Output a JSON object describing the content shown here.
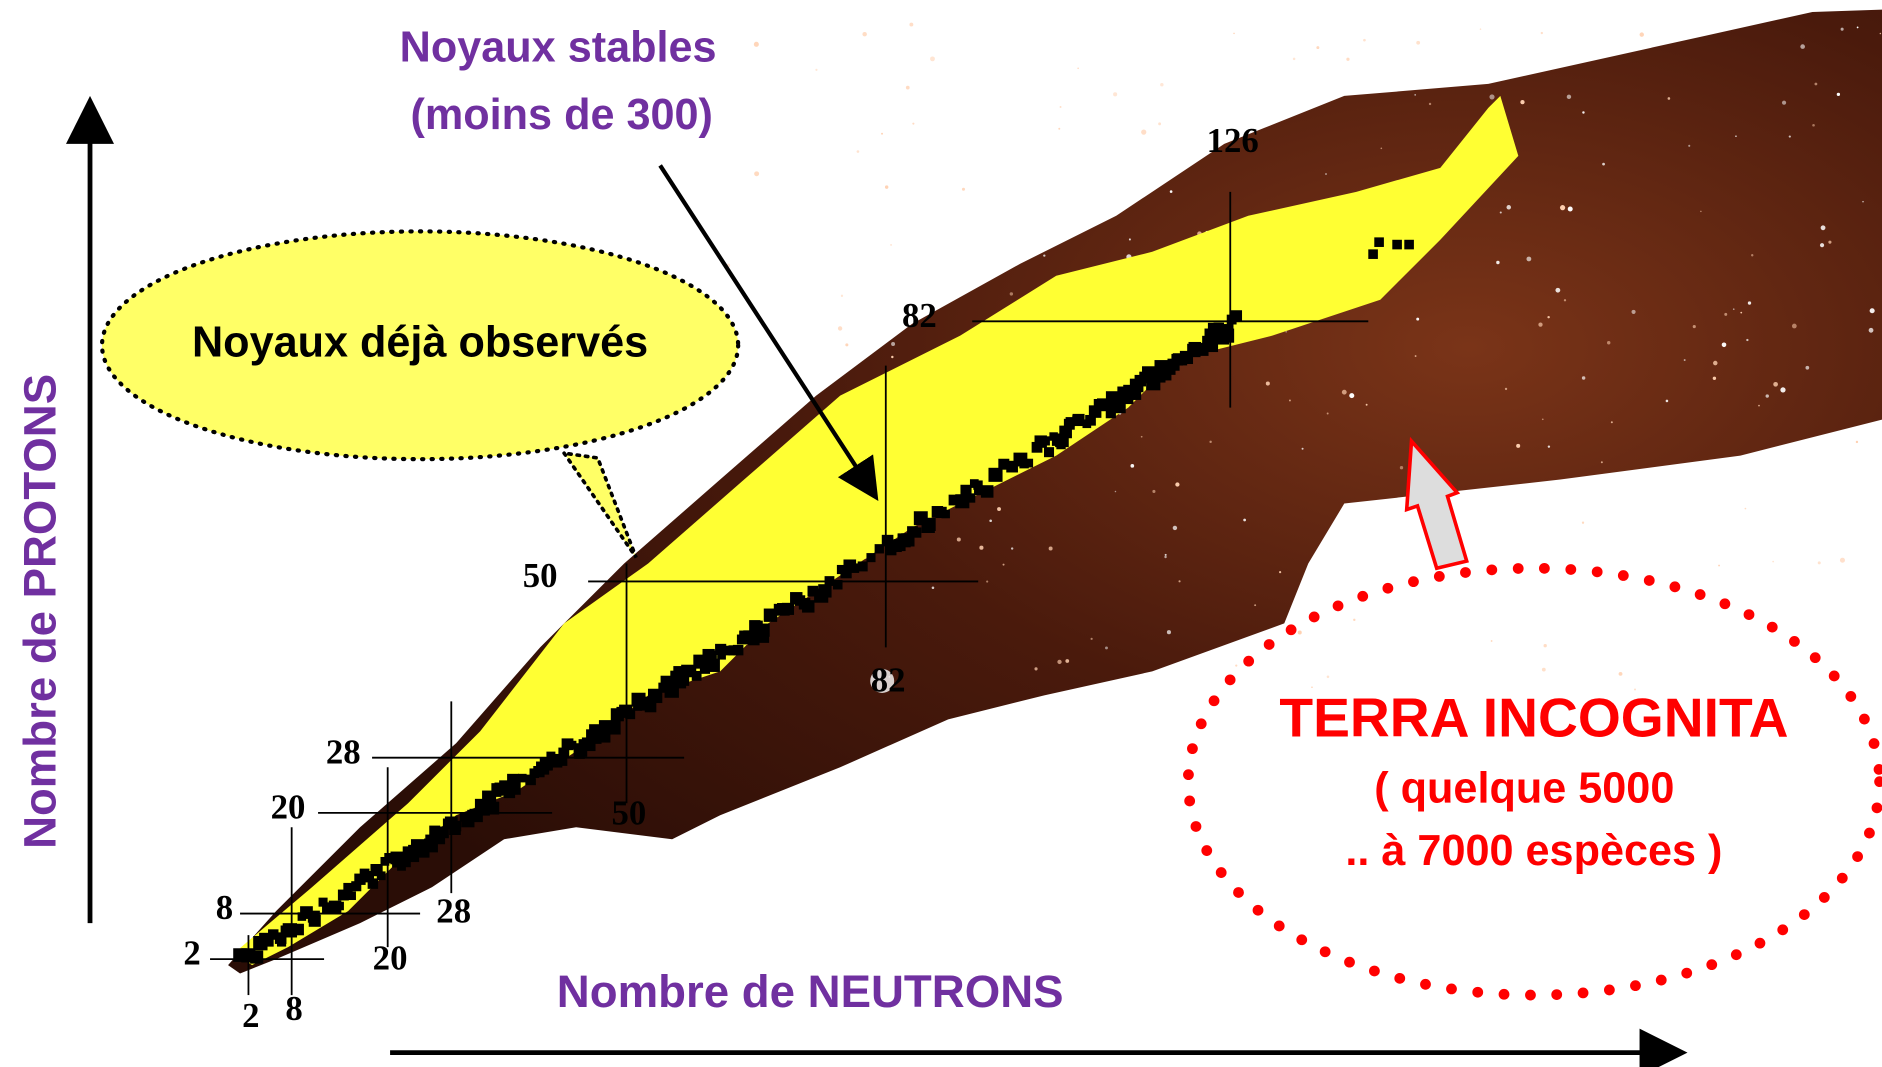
{
  "axes": {
    "y_label": "Nombre de PROTONS",
    "x_label": "Nombre de NEUTRONS"
  },
  "callouts": {
    "stable": {
      "line1": "Noyaux stables",
      "line2": "(moins de 300)"
    },
    "observed": "Noyaux déjà observés",
    "unknown": {
      "title": "TERRA INCOGNITA",
      "line1": "( quelque 5000",
      "line2": ".. à 7000 espèces )"
    }
  },
  "magic_numbers": {
    "protons": [
      2,
      8,
      20,
      28,
      50,
      82
    ],
    "neutrons": [
      2,
      8,
      20,
      28,
      50,
      82,
      126
    ]
  }
}
